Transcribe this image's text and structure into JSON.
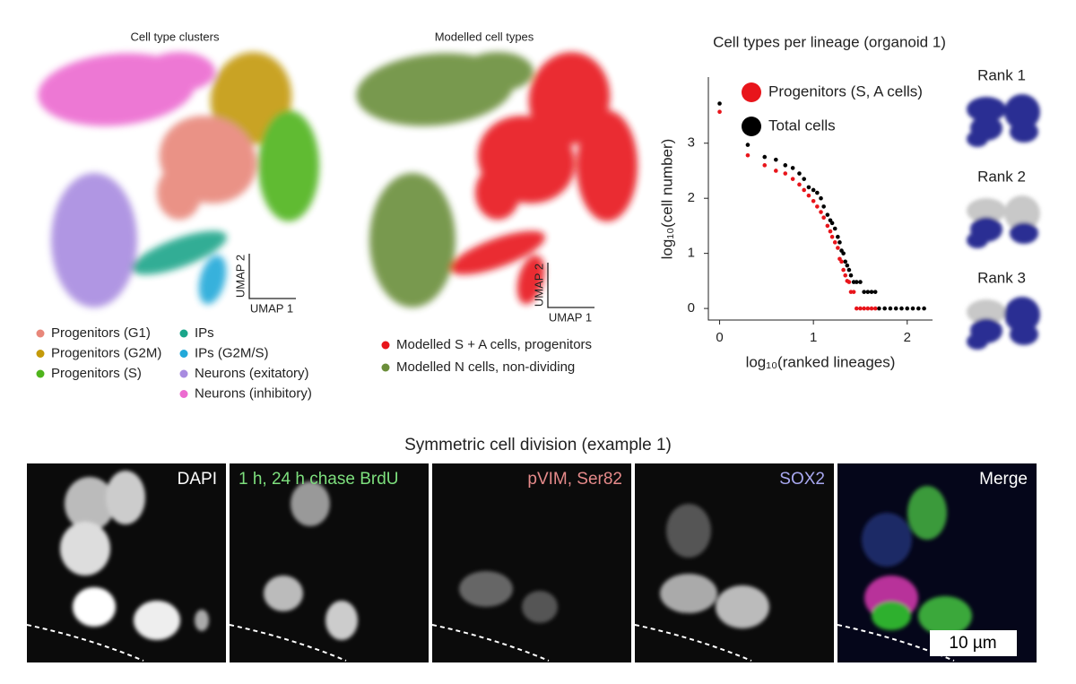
{
  "umap_panels": [
    {
      "title": "Cell type clusters",
      "axis_x": "UMAP 1",
      "axis_y": "UMAP 2",
      "legend": [
        {
          "label": "Progenitors (G1)",
          "color": "#e8877a"
        },
        {
          "label": "Progenitors (G2M)",
          "color": "#c49a0a"
        },
        {
          "label": "Progenitors (S)",
          "color": "#4fb41c"
        },
        {
          "label": "IPs",
          "color": "#1aa58a"
        },
        {
          "label": "IPs (G2M/S)",
          "color": "#22a9d9"
        },
        {
          "label": "Neurons (exitatory)",
          "color": "#a88be0"
        },
        {
          "label": "Neurons (inhibitory)",
          "color": "#ec6bd0"
        }
      ]
    },
    {
      "title": "Modelled cell types",
      "axis_x": "UMAP 1",
      "axis_y": "UMAP 2",
      "legend": [
        {
          "label": "Modelled S + A cells, progenitors",
          "color": "#e8151b"
        },
        {
          "label": "Modelled N cells, non-dividing",
          "color": "#6b8e3a"
        }
      ]
    }
  ],
  "chart_data": {
    "type": "scatter",
    "title": "Cell types per lineage (organoid 1)",
    "x_label": "log₁₀(ranked lineages)",
    "y_label": "log₁₀(cell number)",
    "xlim": [
      -0.12,
      2.27
    ],
    "ylim": [
      -0.21,
      4.2
    ],
    "xticks": [
      0,
      1,
      2
    ],
    "yticks": [
      0,
      1,
      2,
      3
    ],
    "legend_position": "upper right",
    "series": [
      {
        "name": "Total cells",
        "color": "#000000",
        "x": [
          0,
          0.3,
          0.48,
          0.6,
          0.7,
          0.78,
          0.85,
          0.9,
          0.95,
          1.0,
          1.04,
          1.08,
          1.11,
          1.15,
          1.18,
          1.2,
          1.23,
          1.26,
          1.28,
          1.3,
          1.32,
          1.34,
          1.36,
          1.38,
          1.4,
          1.43,
          1.46,
          1.5,
          1.54,
          1.58,
          1.62,
          1.66,
          1.7,
          1.76,
          1.82,
          1.88,
          1.94,
          2.0,
          2.06,
          2.12,
          2.18
        ],
        "values": [
          3.72,
          2.97,
          2.75,
          2.7,
          2.6,
          2.55,
          2.45,
          2.35,
          2.2,
          2.15,
          2.1,
          2.0,
          1.85,
          1.7,
          1.6,
          1.55,
          1.45,
          1.3,
          1.2,
          1.05,
          1.0,
          0.85,
          0.78,
          0.7,
          0.6,
          0.48,
          0.48,
          0.48,
          0.3,
          0.3,
          0.3,
          0.3,
          0,
          0,
          0,
          0,
          0,
          0,
          0,
          0,
          0
        ]
      },
      {
        "name": "Progenitors (S, A cells)",
        "color": "#e8151b",
        "x": [
          0,
          0.3,
          0.48,
          0.6,
          0.7,
          0.78,
          0.85,
          0.9,
          0.95,
          1.0,
          1.04,
          1.08,
          1.11,
          1.15,
          1.18,
          1.2,
          1.23,
          1.26,
          1.28,
          1.3,
          1.32,
          1.34,
          1.36,
          1.38,
          1.4,
          1.43,
          1.46,
          1.5,
          1.54,
          1.58,
          1.62,
          1.66
        ],
        "values": [
          3.57,
          2.78,
          2.6,
          2.5,
          2.45,
          2.35,
          2.25,
          2.15,
          2.05,
          1.95,
          1.85,
          1.75,
          1.65,
          1.5,
          1.4,
          1.3,
          1.2,
          1.1,
          0.9,
          0.85,
          0.7,
          0.6,
          0.5,
          0.48,
          0.3,
          0.3,
          0,
          0,
          0,
          0,
          0,
          0
        ]
      }
    ]
  },
  "rank_panels": [
    "Rank 1",
    "Rank 2",
    "Rank 3"
  ],
  "microscopy": {
    "title": "Symmetric cell division (example 1)",
    "panels": [
      {
        "label": "DAPI",
        "color": "#ffffff"
      },
      {
        "label": "1 h, 24 h chase BrdU",
        "color": "#7ddf7d"
      },
      {
        "label": "pVIM, Ser82",
        "color": "#e58a8a"
      },
      {
        "label": "SOX2",
        "color": "#a8a8f0"
      },
      {
        "label": "Merge",
        "color": "#ffffff"
      }
    ],
    "scale_bar": "10 µm"
  }
}
